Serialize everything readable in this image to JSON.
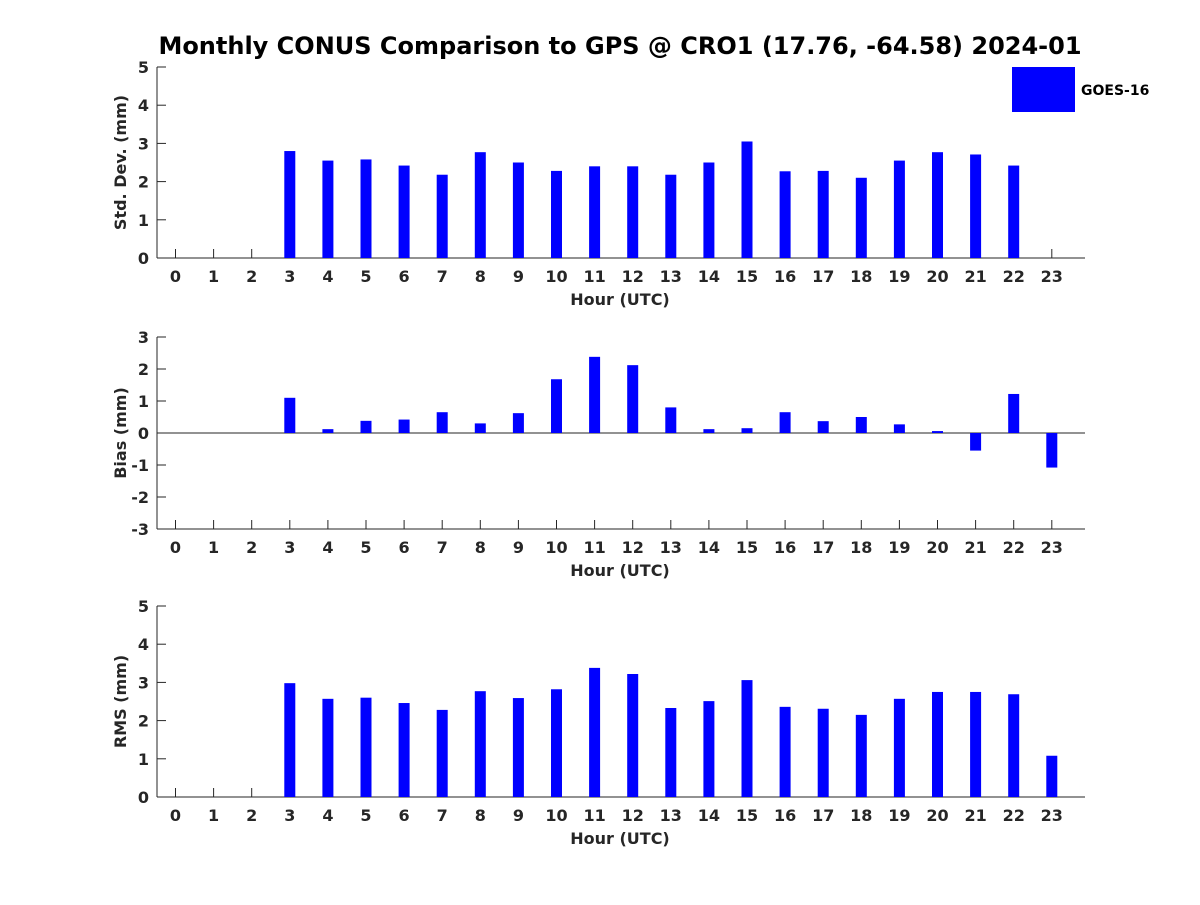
{
  "chart_data": {
    "type": "bar",
    "title": "Monthly CONUS Comparison to GPS @ CRO1 (17.76, -64.58) 2024-01",
    "legend": {
      "label": "GOES-16",
      "placement": "top-right"
    },
    "bar_color": "#0000ff",
    "categories": [
      "0",
      "1",
      "2",
      "3",
      "4",
      "5",
      "6",
      "7",
      "8",
      "9",
      "10",
      "11",
      "12",
      "13",
      "14",
      "15",
      "16",
      "17",
      "18",
      "19",
      "20",
      "21",
      "22",
      "23"
    ],
    "panels": [
      {
        "name": "std-dev",
        "type": "bar",
        "xlabel": "Hour (UTC)",
        "ylabel": "Std. Dev. (mm)",
        "ylim": [
          0,
          5
        ],
        "yticks": [
          "0",
          "1",
          "2",
          "3",
          "4",
          "5"
        ],
        "series": [
          {
            "name": "GOES-16",
            "values": [
              null,
              null,
              null,
              2.8,
              2.55,
              2.58,
              2.42,
              2.18,
              2.77,
              2.5,
              2.28,
              2.4,
              2.4,
              2.18,
              2.5,
              3.05,
              2.27,
              2.28,
              2.1,
              2.55,
              2.77,
              2.71,
              2.42,
              null
            ]
          }
        ]
      },
      {
        "name": "bias",
        "type": "bar",
        "xlabel": "Hour (UTC)",
        "ylabel": "Bias (mm)",
        "ylim": [
          -3,
          3
        ],
        "yticks": [
          "-3",
          "-2",
          "-1",
          "0",
          "1",
          "2",
          "3"
        ],
        "series": [
          {
            "name": "GOES-16",
            "values": [
              null,
              null,
              null,
              1.1,
              0.12,
              0.38,
              0.42,
              0.65,
              0.3,
              0.62,
              1.68,
              2.38,
              2.12,
              0.8,
              0.12,
              0.15,
              0.65,
              0.37,
              0.5,
              0.27,
              0.06,
              -0.55,
              1.22,
              -1.08
            ]
          }
        ]
      },
      {
        "name": "rms",
        "type": "bar",
        "xlabel": "Hour (UTC)",
        "ylabel": "RMS (mm)",
        "ylim": [
          0,
          5
        ],
        "yticks": [
          "0",
          "1",
          "2",
          "3",
          "4",
          "5"
        ],
        "series": [
          {
            "name": "GOES-16",
            "values": [
              null,
              null,
              null,
              2.98,
              2.57,
              2.6,
              2.46,
              2.28,
              2.77,
              2.59,
              2.82,
              3.38,
              3.22,
              2.33,
              2.51,
              3.06,
              2.36,
              2.31,
              2.15,
              2.57,
              2.75,
              2.75,
              2.69,
              1.08
            ]
          }
        ]
      }
    ]
  }
}
